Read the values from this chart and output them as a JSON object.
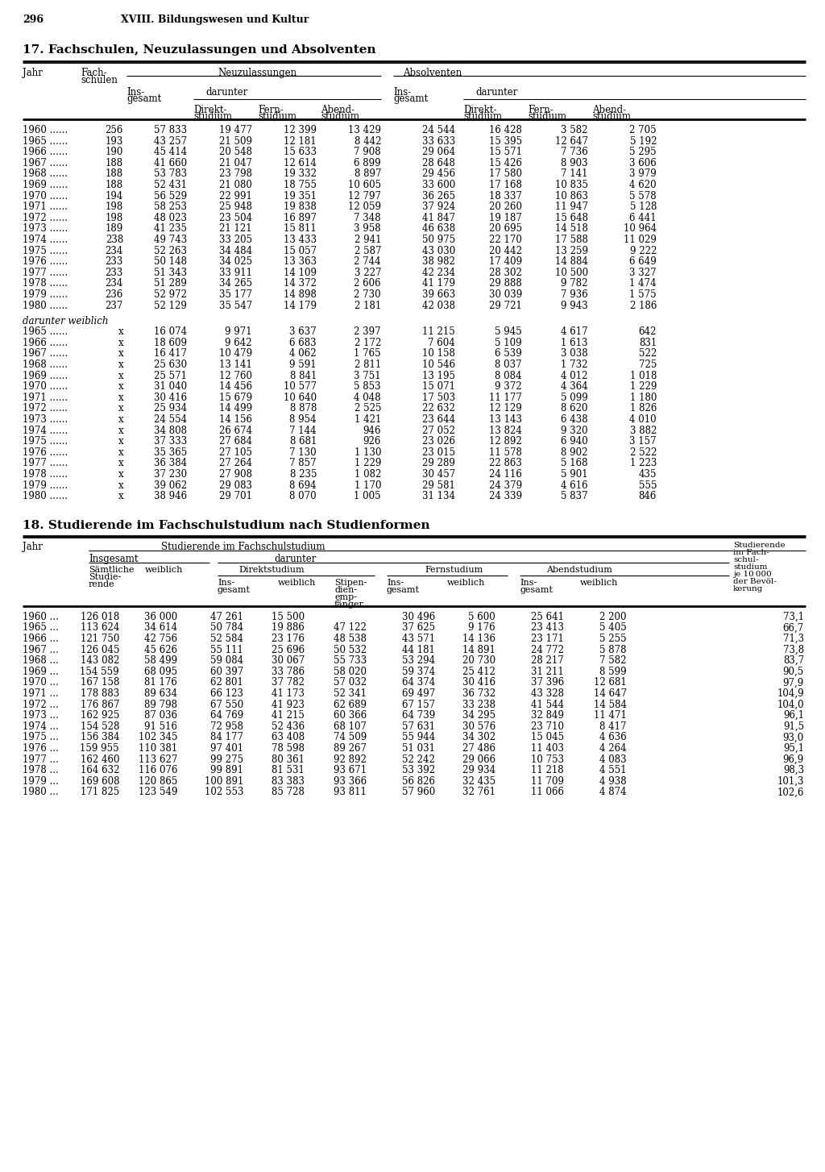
{
  "page_number": "296",
  "page_header": "XVIII. Bildungswesen und Kultur",
  "table1_title": "17. Fachschulen, Neuzulassungen und Absolventen",
  "table2_title": "18. Studierende im Fachschulstudium nach Studienformen",
  "table1_data": [
    [
      "1960 ......",
      "256",
      "57 833",
      "19 477",
      "12 399",
      "13 429",
      "24 544",
      "16 428",
      "3 582",
      "2 705"
    ],
    [
      "1965 ......",
      "193",
      "43 257",
      "21 509",
      "12 181",
      "8 442",
      "33 633",
      "15 395",
      "12 647",
      "5 192"
    ],
    [
      "1966 ......",
      "190",
      "45 414",
      "20 548",
      "15 633",
      "7 908",
      "29 064",
      "15 571",
      "7 736",
      "5 295"
    ],
    [
      "1967 ......",
      "188",
      "41 660",
      "21 047",
      "12 614",
      "6 899",
      "28 648",
      "15 426",
      "8 903",
      "3 606"
    ],
    [
      "1968 ......",
      "188",
      "53 783",
      "23 798",
      "19 332",
      "8 897",
      "29 456",
      "17 580",
      "7 141",
      "3 979"
    ],
    [
      "1969 ......",
      "188",
      "52 431",
      "21 080",
      "18 755",
      "10 605",
      "33 600",
      "17 168",
      "10 835",
      "4 620"
    ],
    [
      "1970 ......",
      "194",
      "56 529",
      "22 991",
      "19 351",
      "12 797",
      "36 265",
      "18 337",
      "10 863",
      "5 578"
    ],
    [
      "1971 ......",
      "198",
      "58 253",
      "25 948",
      "19 838",
      "12 059",
      "37 924",
      "20 260",
      "11 947",
      "5 128"
    ],
    [
      "1972 ......",
      "198",
      "48 023",
      "23 504",
      "16 897",
      "7 348",
      "41 847",
      "19 187",
      "15 648",
      "6 441"
    ],
    [
      "1973 ......",
      "189",
      "41 235",
      "21 121",
      "15 811",
      "3 958",
      "46 638",
      "20 695",
      "14 518",
      "10 964"
    ],
    [
      "1974 ......",
      "238",
      "49 743",
      "33 205",
      "13 433",
      "2 941",
      "50 975",
      "22 170",
      "17 588",
      "11 029"
    ],
    [
      "1975 ......",
      "234",
      "52 263",
      "34 484",
      "15 057",
      "2 587",
      "43 030",
      "20 442",
      "13 259",
      "9 222"
    ],
    [
      "1976 ......",
      "233",
      "50 148",
      "34 025",
      "13 363",
      "2 744",
      "38 982",
      "17 409",
      "14 884",
      "6 649"
    ],
    [
      "1977 ......",
      "233",
      "51 343",
      "33 911",
      "14 109",
      "3 227",
      "42 234",
      "28 302",
      "10 500",
      "3 327"
    ],
    [
      "1978 ......",
      "234",
      "51 289",
      "34 265",
      "14 372",
      "2 606",
      "41 179",
      "29 888",
      "9 782",
      "1 474"
    ],
    [
      "1979 ......",
      "236",
      "52 972",
      "35 177",
      "14 898",
      "2 730",
      "39 663",
      "30 039",
      "7 936",
      "1 575"
    ],
    [
      "1980 ......",
      "237",
      "52 129",
      "35 547",
      "14 179",
      "2 181",
      "42 038",
      "29 721",
      "9 943",
      "2 186"
    ]
  ],
  "table1_subtitle": "darunter weiblich",
  "table1_data2": [
    [
      "1965 ......",
      "x",
      "16 074",
      "9 971",
      "3 637",
      "2 397",
      "11 215",
      "5 945",
      "4 617",
      "642"
    ],
    [
      "1966 ......",
      "x",
      "18 609",
      "9 642",
      "6 683",
      "2 172",
      "7 604",
      "5 109",
      "1 613",
      "831"
    ],
    [
      "1967 ......",
      "x",
      "16 417",
      "10 479",
      "4 062",
      "1 765",
      "10 158",
      "6 539",
      "3 038",
      "522"
    ],
    [
      "1968 ......",
      "x",
      "25 630",
      "13 141",
      "9 591",
      "2 811",
      "10 546",
      "8 037",
      "1 732",
      "725"
    ],
    [
      "1969 ......",
      "x",
      "25 571",
      "12 760",
      "8 841",
      "3 751",
      "13 195",
      "8 084",
      "4 012",
      "1 018"
    ],
    [
      "1970 ......",
      "x",
      "31 040",
      "14 456",
      "10 577",
      "5 853",
      "15 071",
      "9 372",
      "4 364",
      "1 229"
    ],
    [
      "1971 ......",
      "x",
      "30 416",
      "15 679",
      "10 640",
      "4 048",
      "17 503",
      "11 177",
      "5 099",
      "1 180"
    ],
    [
      "1972 ......",
      "x",
      "25 934",
      "14 499",
      "8 878",
      "2 525",
      "22 632",
      "12 129",
      "8 620",
      "1 826"
    ],
    [
      "1973 ......",
      "x",
      "24 554",
      "14 156",
      "8 954",
      "1 421",
      "23 644",
      "13 143",
      "6 438",
      "4 010"
    ],
    [
      "1974 ......",
      "x",
      "34 808",
      "26 674",
      "7 144",
      "946",
      "27 052",
      "13 824",
      "9 320",
      "3 882"
    ],
    [
      "1975 ......",
      "x",
      "37 333",
      "27 684",
      "8 681",
      "926",
      "23 026",
      "12 892",
      "6 940",
      "3 157"
    ],
    [
      "1976 ......",
      "x",
      "35 365",
      "27 105",
      "7 130",
      "1 130",
      "23 015",
      "11 578",
      "8 902",
      "2 522"
    ],
    [
      "1977 ......",
      "x",
      "36 384",
      "27 264",
      "7 857",
      "1 229",
      "29 289",
      "22 863",
      "5 168",
      "1 223"
    ],
    [
      "1978 ......",
      "x",
      "37 230",
      "27 908",
      "8 235",
      "1 082",
      "30 457",
      "24 116",
      "5 901",
      "435"
    ],
    [
      "1979 ......",
      "x",
      "39 062",
      "29 083",
      "8 694",
      "1 170",
      "29 581",
      "24 379",
      "4 616",
      "555"
    ],
    [
      "1980 ......",
      "x",
      "38 946",
      "29 701",
      "8 070",
      "1 005",
      "31 134",
      "24 339",
      "5 837",
      "846"
    ]
  ],
  "table2_data": [
    [
      "1960 ...",
      "126 018",
      "36 000",
      "47 261",
      "15 500",
      "",
      "30 496",
      "5 600",
      "25 641",
      "2 200",
      "73,1"
    ],
    [
      "1965 ...",
      "113 624",
      "34 614",
      "50 784",
      "19 886",
      "47 122",
      "37 625",
      "9 176",
      "23 413",
      "5 405",
      "66,7"
    ],
    [
      "1966 ...",
      "121 750",
      "42 756",
      "52 584",
      "23 176",
      "48 538",
      "43 571",
      "14 136",
      "23 171",
      "5 255",
      "71,3"
    ],
    [
      "1967 ...",
      "126 045",
      "45 626",
      "55 111",
      "25 696",
      "50 532",
      "44 181",
      "14 891",
      "24 772",
      "5 878",
      "73,8"
    ],
    [
      "1968 ...",
      "143 082",
      "58 499",
      "59 084",
      "30 067",
      "55 733",
      "53 294",
      "20 730",
      "28 217",
      "7 582",
      "83,7"
    ],
    [
      "1969 ...",
      "154 559",
      "68 095",
      "60 397",
      "33 786",
      "58 020",
      "59 374",
      "25 412",
      "31 211",
      "8 599",
      "90,5"
    ],
    [
      "1970 ...",
      "167 158",
      "81 176",
      "62 801",
      "37 782",
      "57 032",
      "64 374",
      "30 416",
      "37 396",
      "12 681",
      "97,9"
    ],
    [
      "1971 ...",
      "178 883",
      "89 634",
      "66 123",
      "41 173",
      "52 341",
      "69 497",
      "36 732",
      "43 328",
      "14 647",
      "104,9"
    ],
    [
      "1972 ...",
      "176 867",
      "89 798",
      "67 550",
      "41 923",
      "62 689",
      "67 157",
      "33 238",
      "41 544",
      "14 584",
      "104,0"
    ],
    [
      "1973 ...",
      "162 925",
      "87 036",
      "64 769",
      "41 215",
      "60 366",
      "64 739",
      "34 295",
      "32 849",
      "11 471",
      "96,1"
    ],
    [
      "1974 ...",
      "154 528",
      "91 516",
      "72 958",
      "52 436",
      "68 107",
      "57 631",
      "30 576",
      "23 710",
      "8 417",
      "91,5"
    ],
    [
      "1975 ...",
      "156 384",
      "102 345",
      "84 177",
      "63 408",
      "74 509",
      "55 944",
      "34 302",
      "15 045",
      "4 636",
      "93,0"
    ],
    [
      "1976 ...",
      "159 955",
      "110 381",
      "97 401",
      "78 598",
      "89 267",
      "51 031",
      "27 486",
      "11 403",
      "4 264",
      "95,1"
    ],
    [
      "1977 ...",
      "162 460",
      "113 627",
      "99 275",
      "80 361",
      "92 892",
      "52 242",
      "29 066",
      "10 753",
      "4 083",
      "96,9"
    ],
    [
      "1978 ...",
      "164 632",
      "116 076",
      "99 891",
      "81 531",
      "93 671",
      "53 392",
      "29 934",
      "11 218",
      "4 551",
      "98,3"
    ],
    [
      "1979 ...",
      "169 608",
      "120 865",
      "100 891",
      "83 383",
      "93 366",
      "56 826",
      "32 435",
      "11 709",
      "4 938",
      "101,3"
    ],
    [
      "1980 ...",
      "171 825",
      "123 549",
      "102 553",
      "85 728",
      "93 811",
      "57 960",
      "32 761",
      "11 066",
      "4 874",
      "102,6"
    ]
  ]
}
